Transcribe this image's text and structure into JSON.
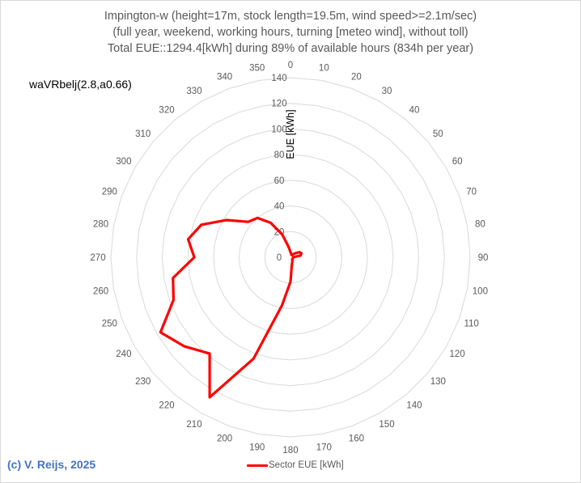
{
  "chart_data": {
    "type": "radar",
    "title": "Impington-w (height=17m, stock length=19.5m, wind speed>=2.1m/sec)",
    "subtitle_lines": [
      "(full year, weekend,  working hours, turning [meteo wind], without toll)",
      "Total EUE::1294.4[kWh] during 89% of available hours (834h per year)"
    ],
    "radial_label": "EUE [kWh]",
    "radial_ticks": [
      0,
      20,
      40,
      60,
      80,
      100,
      120,
      140
    ],
    "rlim": [
      0,
      140
    ],
    "grid": true,
    "legend_position": "bottom",
    "categories": [
      0,
      10,
      20,
      30,
      40,
      50,
      60,
      70,
      80,
      90,
      100,
      110,
      120,
      130,
      140,
      150,
      160,
      170,
      180,
      190,
      200,
      210,
      220,
      230,
      240,
      250,
      260,
      270,
      280,
      290,
      300,
      310,
      320,
      330,
      340,
      350
    ],
    "series": [
      {
        "name": "Sector EUE [kWh]",
        "color": "#ff0000",
        "values": [
          4,
          3,
          2,
          2,
          3,
          5,
          8,
          9,
          8,
          2,
          2,
          2,
          2,
          2,
          2,
          3,
          4,
          6,
          19,
          38,
          84,
          126,
          98,
          108,
          117,
          97,
          93,
          75,
          81,
          74,
          58,
          43,
          40,
          31,
          19,
          8
        ]
      }
    ]
  },
  "header": {
    "line1": "Impington-w (height=17m, stock length=19.5m, wind speed>=2.1m/sec)",
    "line2": "(full year, weekend,  working hours, turning [meteo wind], without toll)",
    "line3": "Total EUE::1294.4[kWh] during 89% of available hours (834h per year)"
  },
  "model_label": "waVRbelj(2.8,a0.66)",
  "legend": {
    "label": "Sector EUE [kWh]"
  },
  "footer": {
    "copyright": "(c) V. Reijs, 2025"
  },
  "colors": {
    "series": "#ff0000",
    "grid": "#d9d9d9",
    "text": "#595959",
    "copyright": "#4472c4"
  }
}
